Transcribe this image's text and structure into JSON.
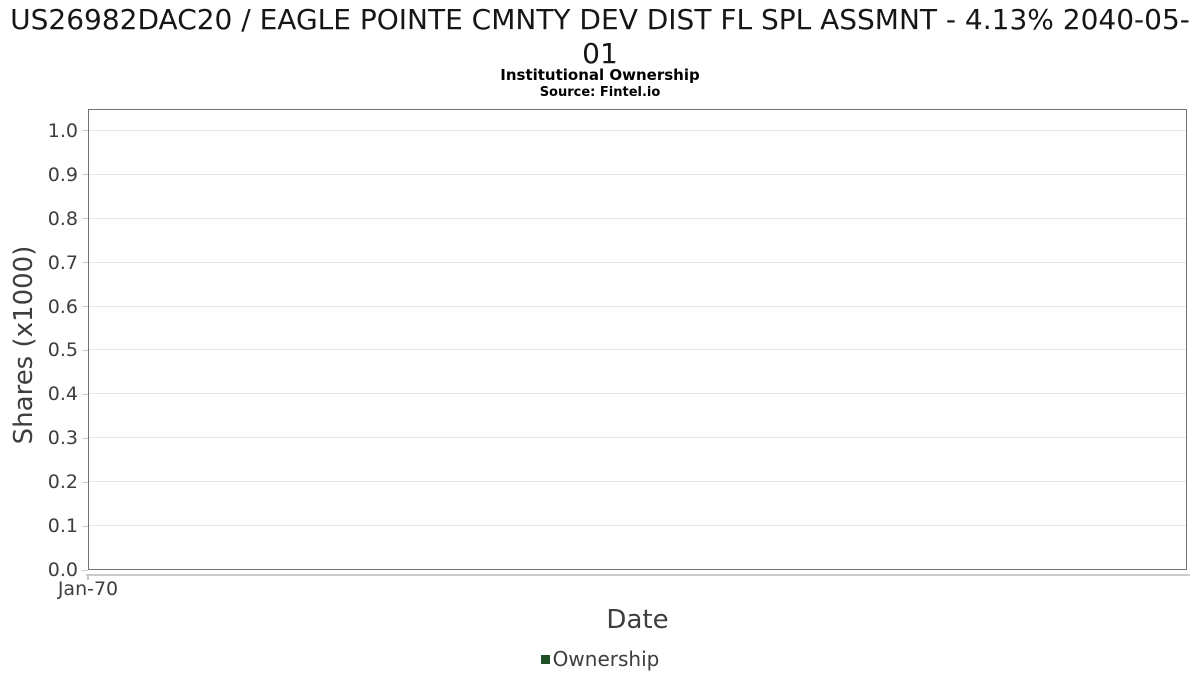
{
  "chart_data": {
    "type": "column",
    "title": "US26982DAC20 / EAGLE POINTE CMNTY DEV DIST FL SPL ASSMNT - 4.13% 2040-05-01",
    "subtitle": "Institutional Ownership",
    "source": "Source: Fintel.io",
    "xlabel": "Date",
    "ylabel": "Shares (x1000)",
    "x_ticks": [
      "Jan-70"
    ],
    "y_ticks": [
      "0.0",
      "0.1",
      "0.2",
      "0.3",
      "0.4",
      "0.5",
      "0.6",
      "0.7",
      "0.8",
      "0.9",
      "1.0"
    ],
    "ylim": [
      0,
      1.05
    ],
    "grid": true,
    "legend_position": "bottom",
    "series": [
      {
        "name": "Ownership",
        "color": "#1e5128",
        "x": [],
        "values": []
      }
    ],
    "colors": {
      "plot_border": "#737373",
      "gridline": "#e6e6e6",
      "tick": "#c9c9c9",
      "axis_text": "#3e3e3e",
      "title_text": "#161616"
    }
  }
}
